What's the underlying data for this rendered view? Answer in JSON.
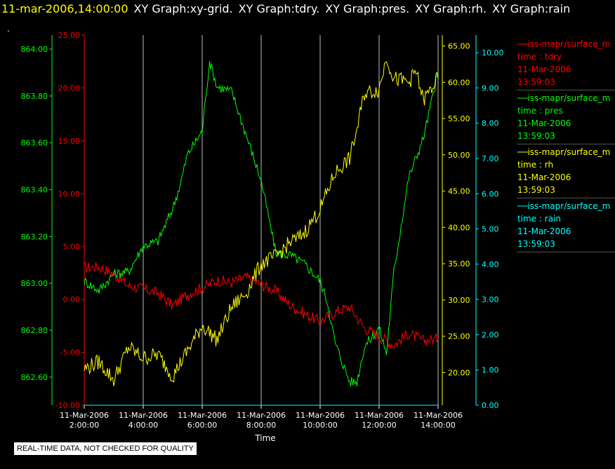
{
  "header": {
    "timestamp": "11-mar-2006,14:00:00",
    "graph_titles": [
      "XY Graph:xy-grid.",
      "XY Graph:tdry.",
      "XY Graph:pres.",
      "XY Graph:rh.",
      "XY Graph:rain"
    ]
  },
  "dot_mark": ".",
  "disclaimer": "REAL-TIME DATA, NOT CHECKED FOR QUALITY",
  "colors": {
    "tdry": "#ff0000",
    "pres": "#00ff00",
    "rh": "#ffff00",
    "rain": "#00ffff",
    "grid": "#bbbbbb"
  },
  "legend": [
    {
      "source": "iss-mapr/surface_m",
      "var": "time : tdry",
      "date": "11-Mar-2006",
      "time": "13:59:03",
      "color": "#ff0000"
    },
    {
      "source": "iss-mapr/surface_m",
      "var": "time : pres",
      "date": "11-Mar-2006",
      "time": "13:59:03",
      "color": "#00ff00"
    },
    {
      "source": "iss-mapr/surface_m",
      "var": "time : rh",
      "date": "11-Mar-2006",
      "time": "13:59:03",
      "color": "#ffff00"
    },
    {
      "source": "iss-mapr/surface_m",
      "var": "time : rain",
      "date": "11-Mar-2006",
      "time": "13:59:03",
      "color": "#00ffff"
    }
  ],
  "chart_data": {
    "type": "line",
    "xlabel": "Time",
    "x_ticks": [
      {
        "date": "11-Mar-2006",
        "time": "2:00:00"
      },
      {
        "date": "11-Mar-2006",
        "time": "4:00:00"
      },
      {
        "date": "11-Mar-2006",
        "time": "6:00:00"
      },
      {
        "date": "11-Mar-2006",
        "time": "8:00:00"
      },
      {
        "date": "11-Mar-2006",
        "time": "10:00:00"
      },
      {
        "date": "11-Mar-2006",
        "time": "12:00:00"
      },
      {
        "date": "11-Mar-2006",
        "time": "14:00:00"
      }
    ],
    "xlim": [
      "11-Mar-2006 2:00:00",
      "11-Mar-2006 14:00:00"
    ],
    "grid": "vertical",
    "axes": {
      "pres": {
        "ylim": [
          862.48,
          864.06
        ],
        "ticks": [
          "862.60",
          "862.80",
          "863.00",
          "863.20",
          "863.40",
          "863.60",
          "863.80",
          "864.00"
        ]
      },
      "tdry": {
        "ylim": [
          -10,
          25
        ],
        "ticks": [
          "-10.00",
          "-5.00",
          "0.00",
          "5.00",
          "10.00",
          "15.00",
          "20.00",
          "25.00"
        ]
      },
      "rh": {
        "ylim": [
          15.5,
          66.5
        ],
        "ticks": [
          "20.00",
          "25.00",
          "30.00",
          "35.00",
          "40.00",
          "45.00",
          "50.00",
          "55.00",
          "60.00",
          "65.00"
        ]
      },
      "rain": {
        "ylim": [
          0,
          10.5
        ],
        "ticks": [
          "0.00",
          "1.00",
          "2.00",
          "3.00",
          "4.00",
          "5.00",
          "6.00",
          "7.00",
          "8.00",
          "9.00",
          "10.00"
        ]
      }
    },
    "series": [
      {
        "name": "tdry",
        "x": [
          "2:00",
          "2:30",
          "3:00",
          "3:30",
          "4:00",
          "4:30",
          "5:00",
          "5:30",
          "6:00",
          "6:30",
          "7:00",
          "7:30",
          "8:00",
          "8:30",
          "9:00",
          "9:30",
          "10:00",
          "10:30",
          "11:00",
          "11:30",
          "12:00",
          "12:30",
          "13:00",
          "13:30",
          "14:00"
        ],
        "y": [
          3.0,
          3.1,
          2.4,
          1.3,
          1.0,
          0.6,
          -0.6,
          0.5,
          1.1,
          1.8,
          1.6,
          2.1,
          1.4,
          0.8,
          -0.6,
          -1.4,
          -2.1,
          -1.2,
          -0.7,
          -2.7,
          -3.5,
          -4.3,
          -3.2,
          -3.9,
          -3.7
        ]
      },
      {
        "name": "pres",
        "x": [
          "2:00",
          "2:30",
          "3:00",
          "3:30",
          "4:00",
          "4:30",
          "5:00",
          "5:15",
          "5:30",
          "6:00",
          "6:15",
          "6:30",
          "7:00",
          "7:30",
          "8:00",
          "8:30",
          "9:00",
          "9:30",
          "10:00",
          "10:15",
          "10:30",
          "11:00",
          "11:15",
          "11:30",
          "12:00",
          "12:15",
          "12:30",
          "13:00",
          "13:30",
          "14:00"
        ],
        "y": [
          863.01,
          862.97,
          863.04,
          863.05,
          863.16,
          863.18,
          863.32,
          863.42,
          863.55,
          863.65,
          863.95,
          863.84,
          863.82,
          863.63,
          863.44,
          863.13,
          863.12,
          863.08,
          863.01,
          862.92,
          862.75,
          862.58,
          862.58,
          862.73,
          862.81,
          862.7,
          863.05,
          863.45,
          863.62,
          863.9
        ]
      },
      {
        "name": "rh",
        "x": [
          "2:00",
          "2:30",
          "3:00",
          "3:30",
          "4:00",
          "4:30",
          "5:00",
          "5:30",
          "6:00",
          "6:30",
          "7:00",
          "7:30",
          "8:00",
          "8:30",
          "9:00",
          "9:15",
          "9:30",
          "10:00",
          "10:15",
          "10:30",
          "11:00",
          "11:15",
          "11:30",
          "12:00",
          "12:15",
          "12:30",
          "13:00",
          "13:15",
          "13:30",
          "14:00"
        ],
        "y": [
          20.5,
          21.5,
          19.0,
          23.5,
          22.0,
          22.5,
          19.5,
          23.0,
          26.5,
          24.5,
          29.0,
          31.0,
          35.0,
          36.0,
          38.0,
          38.5,
          39.5,
          42.5,
          45.0,
          47.5,
          49.5,
          53.5,
          58.5,
          59.0,
          63.5,
          60.5,
          60.0,
          61.5,
          57.5,
          60.5
        ]
      },
      {
        "name": "rain",
        "x": [
          "2:00",
          "14:00"
        ],
        "y": [
          0.0,
          0.0
        ]
      }
    ]
  }
}
